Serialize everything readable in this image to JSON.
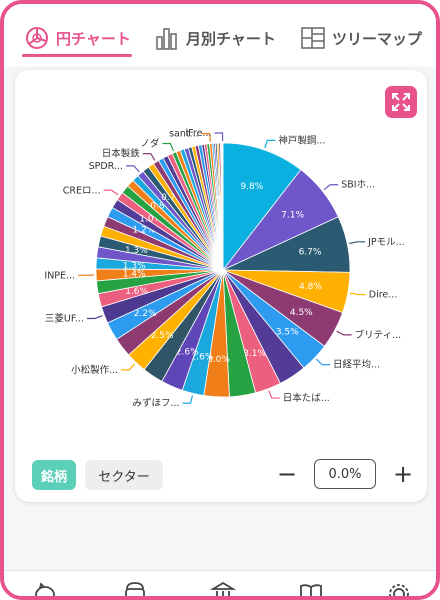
{
  "tabs": [
    {
      "label": "円チャート",
      "icon": "pie-chart-icon",
      "active": true
    },
    {
      "label": "月別チャート",
      "icon": "bar-chart-icon",
      "active": false
    },
    {
      "label": "ツリーマップ",
      "icon": "treemap-icon",
      "active": false
    }
  ],
  "accent_color": "#e8538c",
  "segment_active_color": "#5bcfb7",
  "toolbar": {
    "brand_label": "銘柄",
    "sector_label": "セクター",
    "minus_label": "−",
    "plus_label": "+",
    "threshold_value": "0.0%"
  },
  "bottom_nav": [
    "piggy-bank-icon",
    "wallet-icon",
    "bank-icon",
    "book-icon",
    "gear-icon"
  ],
  "chart_data": {
    "type": "pie",
    "slices": [
      {
        "label": "神戸製鋼...",
        "value": 9.8,
        "pct_label": "9.8%",
        "color": "#0ab1e0"
      },
      {
        "label": "SBIホ...",
        "value": 7.1,
        "pct_label": "7.1%",
        "color": "#6f57c9"
      },
      {
        "label": "JPモル...",
        "value": 6.7,
        "pct_label": "6.7%",
        "color": "#2b5a73"
      },
      {
        "label": "Dire...",
        "value": 4.8,
        "pct_label": "4.8%",
        "color": "#ffb000"
      },
      {
        "label": "ブリティ...",
        "value": 4.5,
        "pct_label": "4.5%",
        "color": "#8e3b74"
      },
      {
        "label": "日経平均...",
        "value": 3.5,
        "pct_label": "3.5%",
        "color": "#2d9bf0"
      },
      {
        "label": "",
        "value": 3.3,
        "pct_label": "",
        "color": "#523c97"
      },
      {
        "label": "日本たば...",
        "value": 3.1,
        "pct_label": "3.1%",
        "color": "#ed5f7e"
      },
      {
        "label": "",
        "value": 3.1,
        "pct_label": "",
        "color": "#27a243"
      },
      {
        "label": "",
        "value": 3.0,
        "pct_label": "3.0%",
        "color": "#f07f1a"
      },
      {
        "label": "みずほフ...",
        "value": 2.6,
        "pct_label": "2.6%",
        "color": "#1aa8df"
      },
      {
        "label": "",
        "value": 2.6,
        "pct_label": "2.6%",
        "color": "#5e45b8"
      },
      {
        "label": "",
        "value": 2.5,
        "pct_label": "",
        "color": "#2f5567"
      },
      {
        "label": "小松製作...",
        "value": 2.5,
        "pct_label": "2.5%",
        "color": "#ffb200"
      },
      {
        "label": "",
        "value": 2.3,
        "pct_label": "",
        "color": "#8c3a70"
      },
      {
        "label": "",
        "value": 2.2,
        "pct_label": "2.2%",
        "color": "#2d9bf0"
      },
      {
        "label": "三菱UF...",
        "value": 2.0,
        "pct_label": "",
        "color": "#4b3a8f"
      },
      {
        "label": "",
        "value": 1.6,
        "pct_label": "1.6%",
        "color": "#ed5f7e"
      },
      {
        "label": "",
        "value": 1.5,
        "pct_label": "",
        "color": "#27a243"
      },
      {
        "label": "INPE...",
        "value": 1.4,
        "pct_label": "1.4%",
        "color": "#f07f1a"
      },
      {
        "label": "",
        "value": 1.3,
        "pct_label": "1.3%",
        "color": "#1aa8df"
      },
      {
        "label": "",
        "value": 1.3,
        "pct_label": "",
        "color": "#6f57c9"
      },
      {
        "label": "",
        "value": 1.3,
        "pct_label": "1.3%",
        "color": "#2b5a73"
      },
      {
        "label": "",
        "value": 1.2,
        "pct_label": "",
        "color": "#ffb000"
      },
      {
        "label": "",
        "value": 1.2,
        "pct_label": "",
        "color": "#8e3b74"
      },
      {
        "label": "",
        "value": 1.2,
        "pct_label": "1.2%",
        "color": "#2d9bf0"
      },
      {
        "label": "",
        "value": 1.1,
        "pct_label": "",
        "color": "#523c97"
      },
      {
        "label": "CREロ...",
        "value": 1.0,
        "pct_label": "1.0%",
        "color": "#ed5f7e"
      },
      {
        "label": "",
        "value": 1.0,
        "pct_label": "",
        "color": "#27a243"
      },
      {
        "label": "",
        "value": 0.9,
        "pct_label": "",
        "color": "#f07f1a"
      },
      {
        "label": "",
        "value": 0.8,
        "pct_label": "0.8%",
        "color": "#1aa8df"
      },
      {
        "label": "SPDR...",
        "value": 0.8,
        "pct_label": "",
        "color": "#6f57c9"
      },
      {
        "label": "",
        "value": 0.8,
        "pct_label": "",
        "color": "#2b5a73"
      },
      {
        "label": "",
        "value": 0.7,
        "pct_label": "0.7%",
        "color": "#ffb000"
      },
      {
        "label": "日本製鉄",
        "value": 0.7,
        "pct_label": "",
        "color": "#8e3b74"
      },
      {
        "label": "",
        "value": 0.6,
        "pct_label": "",
        "color": "#2d9bf0"
      },
      {
        "label": "",
        "value": 0.6,
        "pct_label": "",
        "color": "#523c97"
      },
      {
        "label": "",
        "value": 0.6,
        "pct_label": "",
        "color": "#ed5f7e"
      },
      {
        "label": "ノダ",
        "value": 0.5,
        "pct_label": "",
        "color": "#27a243"
      },
      {
        "label": "",
        "value": 0.5,
        "pct_label": "",
        "color": "#f07f1a"
      },
      {
        "label": "",
        "value": 0.5,
        "pct_label": "",
        "color": "#1aa8df"
      },
      {
        "label": "",
        "value": 0.5,
        "pct_label": "",
        "color": "#6f57c9"
      },
      {
        "label": "",
        "value": 0.4,
        "pct_label": "",
        "color": "#2b5a73"
      },
      {
        "label": "",
        "value": 0.4,
        "pct_label": "",
        "color": "#ffb000"
      },
      {
        "label": "",
        "value": 0.4,
        "pct_label": "",
        "color": "#8e3b74"
      },
      {
        "label": "",
        "value": 0.4,
        "pct_label": "",
        "color": "#2d9bf0"
      },
      {
        "label": "",
        "value": 0.3,
        "pct_label": "",
        "color": "#523c97"
      },
      {
        "label": "",
        "value": 0.3,
        "pct_label": "",
        "color": "#ed5f7e"
      },
      {
        "label": "",
        "value": 0.3,
        "pct_label": "",
        "color": "#27a243"
      },
      {
        "label": "sant...",
        "value": 0.3,
        "pct_label": "",
        "color": "#f07f1a"
      },
      {
        "label": "",
        "value": 0.2,
        "pct_label": "",
        "color": "#1aa8df"
      },
      {
        "label": "",
        "value": 0.2,
        "pct_label": "",
        "color": "#6f57c9"
      },
      {
        "label": "",
        "value": 0.2,
        "pct_label": "",
        "color": "#2b5a73"
      },
      {
        "label": "",
        "value": 0.2,
        "pct_label": "",
        "color": "#ffb000"
      },
      {
        "label": "",
        "value": 0.2,
        "pct_label": "",
        "color": "#8e3b74"
      },
      {
        "label": "",
        "value": 0.1,
        "pct_label": "",
        "color": "#2d9bf0"
      },
      {
        "label": "",
        "value": 0.1,
        "pct_label": "",
        "color": "#523c97"
      },
      {
        "label": "iFre...",
        "value": 0.1,
        "pct_label": "",
        "color": "#6f57c9"
      }
    ]
  }
}
